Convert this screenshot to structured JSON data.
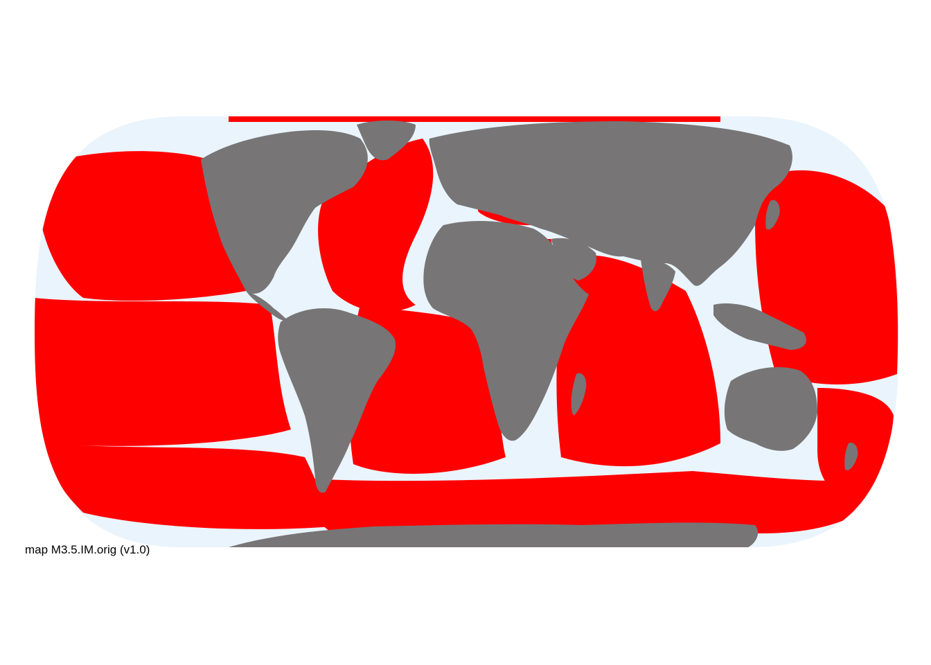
{
  "map": {
    "caption": "map M3.5.IM.orig (v1.0)",
    "projection": "Eckert IV",
    "colors": {
      "page_background": "#ffffff",
      "ocean": "#eaf4fc",
      "land": "#777576",
      "feature": "#ff0000"
    }
  }
}
